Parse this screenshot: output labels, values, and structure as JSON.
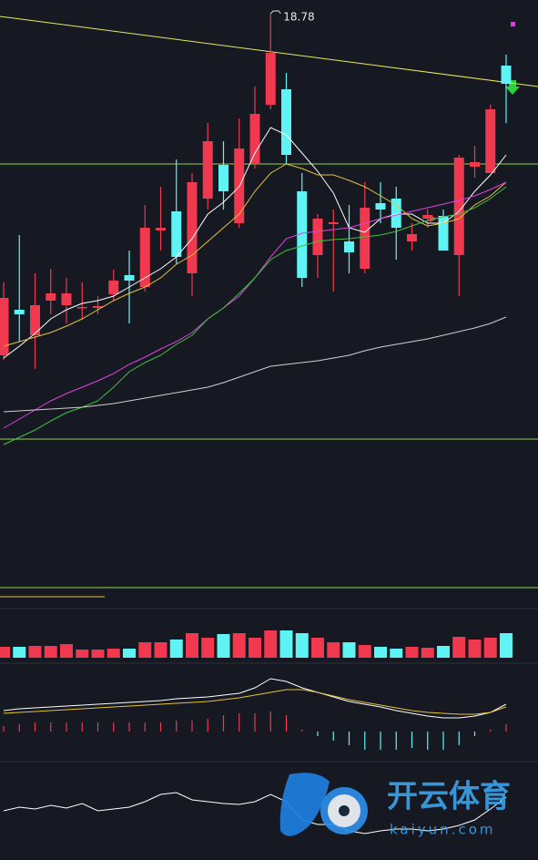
{
  "chart_data": [
    {
      "type": "candlestick",
      "ylim": [
        12.53,
        18.93
      ],
      "up_color": "#f0384f",
      "down_color": "#5ff3f3",
      "open": [
        15.03,
        15.53,
        15.25,
        15.63,
        15.58,
        15.56,
        15.55,
        15.7,
        15.91,
        15.78,
        16.4,
        16.61,
        15.93,
        16.75,
        17.12,
        16.48,
        17.13,
        17.78,
        17.95,
        16.83,
        16.13,
        16.47,
        16.28,
        15.98,
        16.7,
        16.75,
        16.28,
        16.53,
        16.56,
        16.13,
        17.1,
        17.03,
        18.21
      ],
      "close": [
        15.66,
        15.48,
        15.58,
        15.71,
        15.71,
        15.56,
        15.57,
        15.85,
        15.85,
        16.43,
        16.43,
        16.11,
        16.93,
        17.38,
        16.83,
        17.3,
        17.68,
        18.35,
        17.23,
        15.88,
        16.53,
        16.49,
        16.16,
        16.65,
        16.63,
        16.43,
        16.36,
        16.57,
        16.18,
        17.2,
        17.15,
        17.73,
        18.01
      ],
      "high": [
        15.83,
        16.35,
        15.93,
        15.98,
        15.88,
        15.83,
        15.68,
        15.97,
        16.18,
        16.68,
        16.88,
        17.18,
        17.03,
        17.58,
        17.38,
        17.63,
        17.98,
        18.78,
        18.13,
        17.03,
        16.58,
        16.63,
        16.68,
        16.93,
        16.93,
        16.88,
        16.48,
        16.63,
        16.63,
        17.23,
        17.33,
        17.78,
        18.33
      ],
      "low": [
        14.98,
        15.18,
        14.88,
        15.48,
        15.38,
        15.43,
        15.48,
        15.63,
        15.38,
        15.73,
        16.18,
        16.03,
        15.68,
        16.63,
        16.63,
        16.43,
        17.08,
        17.73,
        17.13,
        15.78,
        15.88,
        15.73,
        15.93,
        15.93,
        16.48,
        16.08,
        16.18,
        16.43,
        16.18,
        15.68,
        16.98,
        17.03,
        17.58
      ],
      "max_label": "18.78",
      "lines": [
        {
          "color": "#ffffff",
          "values": [
            15.0,
            15.13,
            15.27,
            15.43,
            15.53,
            15.6,
            15.63,
            15.68,
            15.78,
            15.88,
            15.98,
            16.11,
            16.31,
            16.58,
            16.71,
            16.88,
            17.25,
            17.53,
            17.45,
            17.25,
            17.05,
            16.81,
            16.43,
            16.38,
            16.53,
            16.58,
            16.58,
            16.48,
            16.48,
            16.61,
            16.83,
            17.01,
            17.23
          ]
        },
        {
          "color": "#e6c23a",
          "values": [
            15.13,
            15.18,
            15.23,
            15.28,
            15.35,
            15.43,
            15.53,
            15.63,
            15.71,
            15.78,
            15.88,
            16.03,
            16.13,
            16.28,
            16.43,
            16.58,
            16.83,
            17.03,
            17.13,
            17.08,
            17.01,
            17.01,
            16.95,
            16.88,
            16.78,
            16.68,
            16.53,
            16.45,
            16.48,
            16.53,
            16.68,
            16.78,
            16.93
          ]
        },
        {
          "color": "#e040e0",
          "values": [
            14.23,
            14.33,
            14.43,
            14.53,
            14.61,
            14.68,
            14.75,
            14.83,
            14.93,
            15.01,
            15.1,
            15.18,
            15.28,
            15.43,
            15.55,
            15.68,
            15.88,
            16.11,
            16.31,
            16.37,
            16.39,
            16.41,
            16.43,
            16.48,
            16.53,
            16.57,
            16.61,
            16.65,
            16.69,
            16.73,
            16.78,
            16.85,
            16.93
          ]
        },
        {
          "color": "#3fc23f",
          "values": [
            14.05,
            14.13,
            14.21,
            14.31,
            14.4,
            14.46,
            14.53,
            14.68,
            14.85,
            14.95,
            15.03,
            15.15,
            15.25,
            15.43,
            15.55,
            15.71,
            15.88,
            16.08,
            16.18,
            16.23,
            16.28,
            16.3,
            16.31,
            16.33,
            16.35,
            16.39,
            16.45,
            16.51,
            16.55,
            16.58,
            16.65,
            16.75,
            16.88
          ]
        },
        {
          "color": "#cfcfcf",
          "values": [
            14.41,
            14.42,
            14.43,
            14.44,
            14.45,
            14.46,
            14.48,
            14.5,
            14.53,
            14.56,
            14.59,
            14.62,
            14.65,
            14.68,
            14.73,
            14.79,
            14.85,
            14.91,
            14.93,
            14.95,
            14.97,
            15.0,
            15.03,
            15.08,
            15.12,
            15.15,
            15.18,
            15.21,
            15.25,
            15.29,
            15.33,
            15.38,
            15.45
          ]
        }
      ],
      "hlines": {
        "color": "#8fd14f",
        "values": [
          17.13,
          14.11
        ]
      },
      "trendline": {
        "color": "#e8e85a",
        "values": [
          18.75,
          17.98
        ]
      }
    },
    {
      "type": "bar",
      "ylim": [
        0,
        40
      ],
      "values": [
        12,
        12,
        13,
        13,
        15,
        9,
        9,
        10,
        10,
        17,
        17,
        20,
        27,
        22,
        26,
        27,
        22,
        30,
        30,
        27,
        22,
        17,
        17,
        14,
        12,
        10,
        12,
        11,
        13,
        23,
        20,
        22,
        27
      ]
    },
    {
      "type": "macd",
      "ylim": [
        -0.29,
        0.73
      ],
      "hist": [
        0.06,
        0.08,
        0.1,
        0.1,
        0.1,
        0.1,
        0.1,
        0.1,
        0.1,
        0.1,
        0.1,
        0.12,
        0.12,
        0.14,
        0.18,
        0.2,
        0.2,
        0.22,
        0.18,
        0.02,
        -0.05,
        -0.1,
        -0.15,
        -0.2,
        -0.2,
        -0.2,
        -0.18,
        -0.2,
        -0.2,
        -0.15,
        -0.05,
        0.02,
        0.08
      ],
      "lines": [
        {
          "color": "#ffffff",
          "values": [
            0.23,
            0.25,
            0.26,
            0.27,
            0.28,
            0.29,
            0.3,
            0.31,
            0.32,
            0.33,
            0.34,
            0.36,
            0.37,
            0.38,
            0.4,
            0.42,
            0.48,
            0.58,
            0.55,
            0.48,
            0.43,
            0.38,
            0.33,
            0.3,
            0.27,
            0.23,
            0.2,
            0.17,
            0.15,
            0.15,
            0.17,
            0.21,
            0.3
          ]
        },
        {
          "color": "#e6c23a",
          "values": [
            0.2,
            0.21,
            0.22,
            0.23,
            0.24,
            0.25,
            0.26,
            0.27,
            0.28,
            0.29,
            0.3,
            0.31,
            0.32,
            0.33,
            0.35,
            0.37,
            0.4,
            0.43,
            0.46,
            0.46,
            0.43,
            0.39,
            0.35,
            0.32,
            0.29,
            0.26,
            0.23,
            0.21,
            0.2,
            0.19,
            0.19,
            0.21,
            0.27
          ]
        }
      ]
    },
    {
      "type": "line",
      "ylim": [
        0,
        100
      ],
      "color": "#ffffff",
      "values": [
        50,
        54,
        52,
        56,
        53,
        58,
        50,
        52,
        54,
        60,
        68,
        70,
        62,
        60,
        58,
        57,
        60,
        68,
        60,
        40,
        35,
        35,
        28,
        25,
        28,
        30,
        30,
        28,
        30,
        34,
        40,
        52,
        65
      ]
    }
  ],
  "watermark": {
    "name": "开云体育",
    "site": "kaiyun.com"
  }
}
